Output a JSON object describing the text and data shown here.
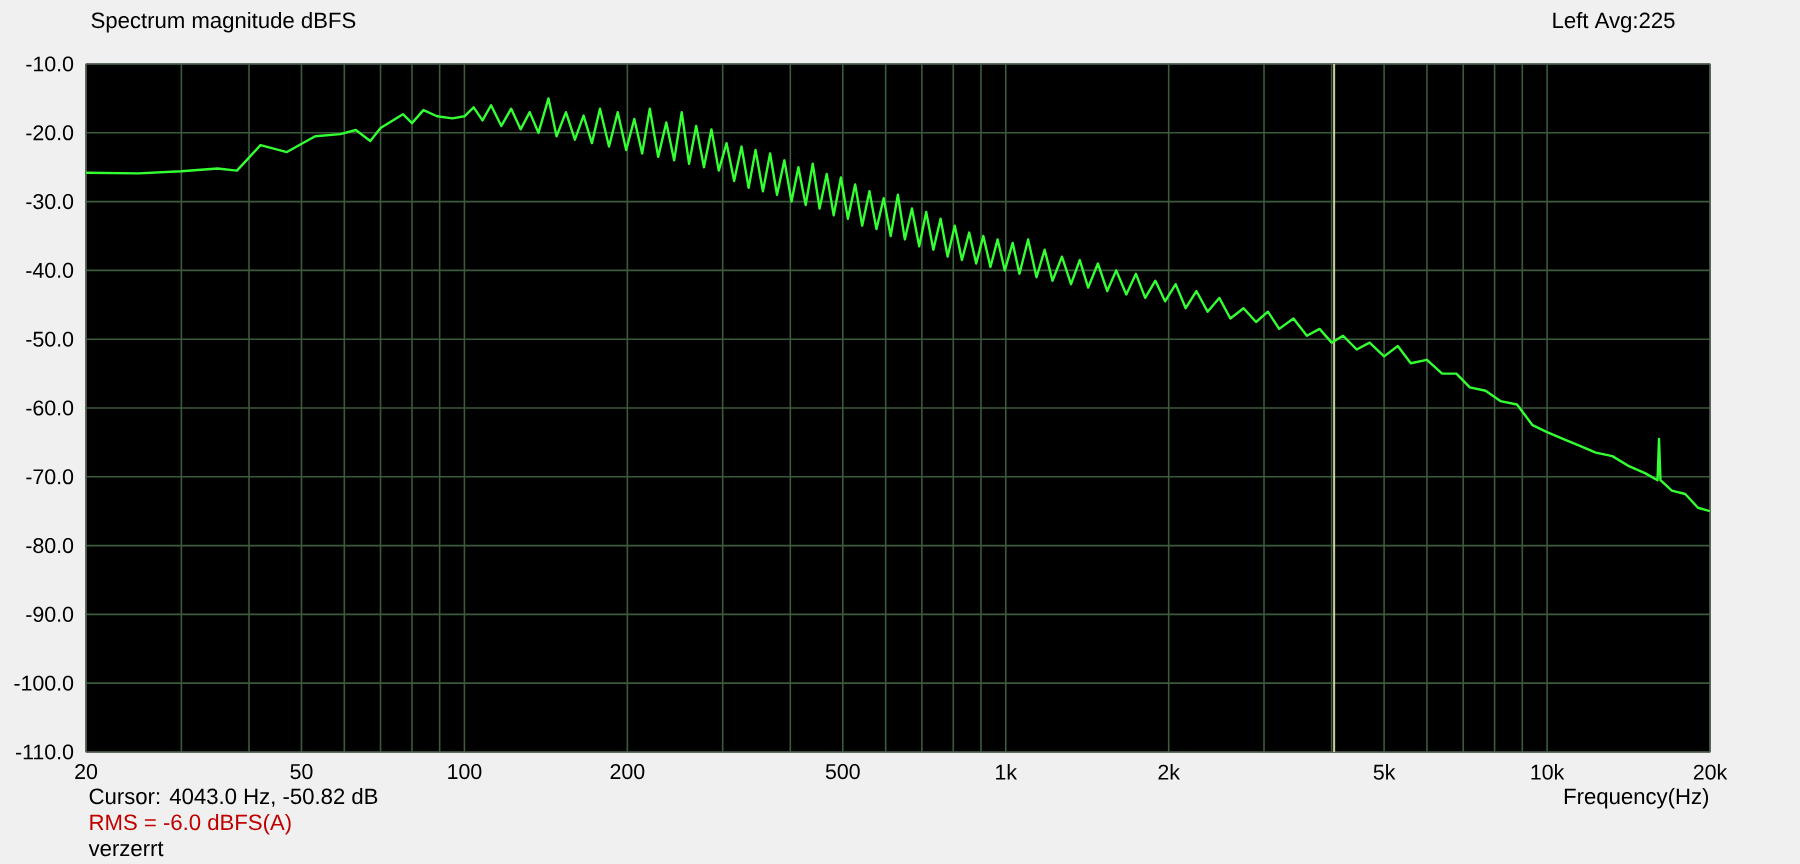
{
  "chart_data": {
    "type": "line",
    "title": "Spectrum magnitude dBFS",
    "xlabel": "Frequency(Hz)",
    "annotations": [
      "Left  Avg:225",
      "Cursor:  4043.0 Hz, -50.82 dB",
      "RMS =  -6.0 dBFS(A)",
      "verzerrt"
    ],
    "log": "x",
    "grid": true,
    "xlim": [
      20,
      20000
    ],
    "ylim": [
      -110,
      -10
    ],
    "xticks": [
      20,
      {
        "value": 30,
        "label": null
      },
      {
        "value": 40,
        "label": null
      },
      50,
      {
        "value": 60,
        "label": null
      },
      {
        "value": 70,
        "label": null
      },
      {
        "value": 80,
        "label": null
      },
      {
        "value": 90,
        "label": null
      },
      100,
      200,
      {
        "value": 300,
        "label": null
      },
      {
        "value": 400,
        "label": null
      },
      500,
      {
        "value": 600,
        "label": null
      },
      {
        "value": 700,
        "label": null
      },
      {
        "value": 800,
        "label": null
      },
      {
        "value": 900,
        "label": null
      },
      {
        "value": 1000,
        "label": "1k"
      },
      {
        "value": 2000,
        "label": "2k"
      },
      {
        "value": 3000,
        "label": null
      },
      {
        "value": 4000,
        "label": null
      },
      {
        "value": 5000,
        "label": "5k"
      },
      {
        "value": 6000,
        "label": null
      },
      {
        "value": 7000,
        "label": null
      },
      {
        "value": 8000,
        "label": null
      },
      {
        "value": 9000,
        "label": null
      },
      {
        "value": 10000,
        "label": "10k"
      },
      {
        "value": 20000,
        "label": "20k"
      }
    ],
    "yticks": [
      {
        "value": -10,
        "label": "-10.0"
      },
      {
        "value": -20,
        "label": "-20.0"
      },
      {
        "value": -30,
        "label": "-30.0"
      },
      {
        "value": -40,
        "label": "-40.0"
      },
      {
        "value": -50,
        "label": "-50.0"
      },
      {
        "value": -60,
        "label": "-60.0"
      },
      {
        "value": -70,
        "label": "-70.0"
      },
      {
        "value": -80,
        "label": "-80.0"
      },
      {
        "value": -90,
        "label": "-90.0"
      },
      {
        "value": -100,
        "label": "-100.0"
      },
      {
        "value": -110,
        "label": "-110.0"
      }
    ],
    "ref_lines": [
      {
        "axis": "x",
        "value": 4043,
        "color": "#c8cc9c"
      }
    ],
    "series": [
      {
        "color": "#33ff33",
        "x": [
          20,
          25,
          30,
          35,
          38,
          42,
          47,
          53,
          59,
          63,
          67,
          70,
          77,
          80,
          84,
          89,
          95,
          100,
          104,
          108,
          112,
          117,
          122,
          127,
          132,
          137,
          143,
          148,
          154,
          160,
          166,
          172,
          178,
          185,
          192,
          199,
          206,
          213,
          220,
          228,
          236,
          244,
          252,
          260,
          268,
          277,
          286,
          295,
          305,
          315,
          325,
          335,
          345,
          356,
          367,
          378,
          390,
          402,
          414,
          427,
          440,
          453,
          467,
          481,
          496,
          511,
          527,
          543,
          560,
          577,
          595,
          613,
          632,
          651,
          671,
          692,
          713,
          735,
          758,
          781,
          805,
          830,
          856,
          882,
          909,
          937,
          966,
          996,
          1030,
          1060,
          1100,
          1140,
          1180,
          1220,
          1270,
          1320,
          1370,
          1420,
          1480,
          1540,
          1600,
          1670,
          1740,
          1810,
          1890,
          1970,
          2060,
          2150,
          2250,
          2360,
          2480,
          2600,
          2750,
          2900,
          3050,
          3200,
          3400,
          3600,
          3800,
          4000,
          4200,
          4450,
          4700,
          5000,
          5300,
          5600,
          6000,
          6400,
          6800,
          7200,
          7700,
          8200,
          8800,
          9400,
          10000,
          10700,
          11500,
          12300,
          13200,
          14200,
          15200,
          16000,
          16100,
          16200,
          17000,
          18000,
          19000,
          20000
        ],
        "values": [
          -25.8,
          -25.9,
          -25.6,
          -25.2,
          -25.5,
          -21.8,
          -22.8,
          -20.5,
          -20.2,
          -19.6,
          -21.2,
          -19.3,
          -17.3,
          -18.6,
          -16.7,
          -17.6,
          -17.9,
          -17.6,
          -16.3,
          -18.2,
          -16.0,
          -19.0,
          -16.5,
          -19.5,
          -17.0,
          -20.0,
          -15.0,
          -20.5,
          -17.0,
          -21.0,
          -17.5,
          -21.5,
          -16.5,
          -22.0,
          -17.0,
          -22.5,
          -18.0,
          -23.0,
          -16.5,
          -23.5,
          -18.5,
          -24.0,
          -17.0,
          -24.5,
          -19.0,
          -25.0,
          -19.5,
          -25.5,
          -21.5,
          -27.0,
          -22.0,
          -28.0,
          -22.5,
          -28.5,
          -23.0,
          -29.0,
          -24.0,
          -30.0,
          -25.0,
          -30.5,
          -24.5,
          -31.0,
          -26.0,
          -32.0,
          -26.5,
          -32.5,
          -27.5,
          -33.5,
          -28.5,
          -34.0,
          -29.5,
          -35.0,
          -29.0,
          -35.5,
          -31.0,
          -36.5,
          -31.5,
          -37.0,
          -32.5,
          -38.0,
          -33.5,
          -38.5,
          -34.5,
          -39.0,
          -35.0,
          -39.5,
          -35.5,
          -40.0,
          -36.0,
          -40.5,
          -35.5,
          -41.0,
          -37.0,
          -41.5,
          -38.0,
          -42.0,
          -38.5,
          -42.5,
          -39.0,
          -43.0,
          -40.0,
          -43.5,
          -40.5,
          -44.0,
          -41.5,
          -44.5,
          -42.0,
          -45.5,
          -43.0,
          -46.0,
          -44.0,
          -47.0,
          -45.5,
          -47.5,
          -46.0,
          -48.5,
          -47.0,
          -49.5,
          -48.5,
          -50.5,
          -49.5,
          -51.5,
          -50.5,
          -52.5,
          -51.0,
          -53.5,
          -53.0,
          -55.0,
          -55.0,
          -57.0,
          -57.5,
          -59.0,
          -59.5,
          -62.5,
          -63.5,
          -64.5,
          -65.5,
          -66.5,
          -67.0,
          -68.5,
          -69.5,
          -70.5,
          -64.5,
          -70.5,
          -72.0,
          -72.5,
          -74.5,
          -75.0
        ]
      }
    ]
  }
}
